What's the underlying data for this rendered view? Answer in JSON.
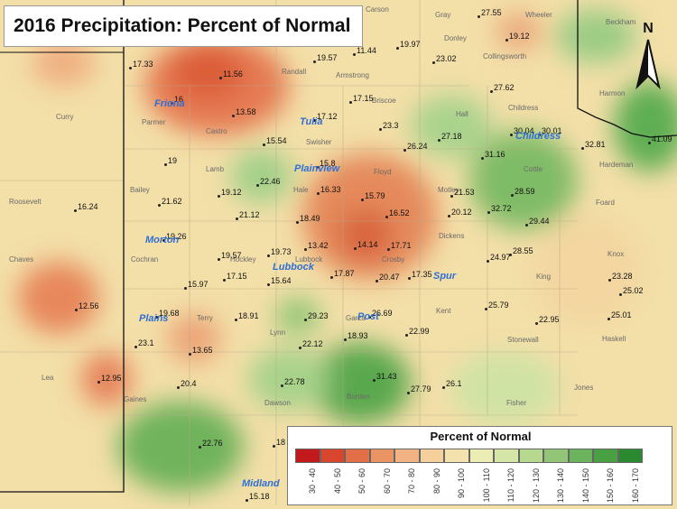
{
  "title": "2016 Precipitation: Percent of Normal",
  "legend": {
    "title": "Percent of Normal",
    "ranges": [
      "30 - 40",
      "40 - 50",
      "50 - 60",
      "60 - 70",
      "70 - 80",
      "80 - 90",
      "90 - 100",
      "100 - 110",
      "110 - 120",
      "120 - 130",
      "130 - 140",
      "140 - 150",
      "150 - 160",
      "160 - 170"
    ],
    "colors": [
      "#c2191c",
      "#d9462e",
      "#e36f48",
      "#ea9363",
      "#f1b383",
      "#f5cf9c",
      "#f3e2ae",
      "#ecedb5",
      "#d5e6a6",
      "#b7d98f",
      "#93c576",
      "#6bb35c",
      "#48a042",
      "#2b8a2f"
    ]
  },
  "north_arrow": {
    "label": "N",
    "icon": "north-arrow-icon"
  },
  "stations": [
    {
      "value": "27.55"
    },
    {
      "value": "19.12"
    },
    {
      "value": "17.33"
    },
    {
      "value": "11.56"
    },
    {
      "value": "19.57"
    },
    {
      "value": "11.44"
    },
    {
      "value": "19.97"
    },
    {
      "value": "23.02"
    },
    {
      "value": "27.62"
    },
    {
      "value": "16"
    },
    {
      "value": "13.58"
    },
    {
      "value": "17.15"
    },
    {
      "value": "17.12"
    },
    {
      "value": "23.3"
    },
    {
      "value": "30.04"
    },
    {
      "value": "30.01"
    },
    {
      "value": "41.09"
    },
    {
      "value": "15.54"
    },
    {
      "value": "26.24"
    },
    {
      "value": "27.18"
    },
    {
      "value": "31.16"
    },
    {
      "value": "32.81"
    },
    {
      "value": "15.8"
    },
    {
      "value": "19"
    },
    {
      "value": "22.46"
    },
    {
      "value": "16.33"
    },
    {
      "value": "16.24"
    },
    {
      "value": "21.62"
    },
    {
      "value": "19.12"
    },
    {
      "value": "15.79"
    },
    {
      "value": "21.53"
    },
    {
      "value": "28.59"
    },
    {
      "value": "21.12"
    },
    {
      "value": "18.49"
    },
    {
      "value": "16.52"
    },
    {
      "value": "20.12"
    },
    {
      "value": "32.72"
    },
    {
      "value": "29.44"
    },
    {
      "value": "19.26"
    },
    {
      "value": "14.14"
    },
    {
      "value": "17.71"
    },
    {
      "value": "19.57"
    },
    {
      "value": "19.73"
    },
    {
      "value": "13.42"
    },
    {
      "value": "28.55"
    },
    {
      "value": "24.97"
    },
    {
      "value": "17.15"
    },
    {
      "value": "15.64"
    },
    {
      "value": "17.87"
    },
    {
      "value": "20.47"
    },
    {
      "value": "17.35"
    },
    {
      "value": "12.56"
    },
    {
      "value": "23.28"
    },
    {
      "value": "15.97"
    },
    {
      "value": "25.02"
    },
    {
      "value": "19.68"
    },
    {
      "value": "18.91"
    },
    {
      "value": "29.23"
    },
    {
      "value": "26.69"
    },
    {
      "value": "25.79"
    },
    {
      "value": "22.95"
    },
    {
      "value": "25.01"
    },
    {
      "value": "18.93"
    },
    {
      "value": "22.99"
    },
    {
      "value": "23.1"
    },
    {
      "value": "13.65"
    },
    {
      "value": "22.12"
    },
    {
      "value": "12.95"
    },
    {
      "value": "20.4"
    },
    {
      "value": "22.78"
    },
    {
      "value": "31.43"
    },
    {
      "value": "27.79"
    },
    {
      "value": "26.1"
    },
    {
      "value": "22.76"
    },
    {
      "value": "18"
    },
    {
      "value": "15.18"
    }
  ],
  "counties": [
    "Carson",
    "Gray",
    "Wheeler",
    "Beckham",
    "Donley",
    "Collingsworth",
    "Randall",
    "Armstrong",
    "Harmon",
    "Curry",
    "Parmer",
    "Castro",
    "Swisher",
    "Briscoe",
    "Hall",
    "Childress",
    "Hardeman",
    "Lamb",
    "Hale",
    "Floyd",
    "Motley",
    "Cottle",
    "Foard",
    "Roosevelt",
    "Bailey",
    "Dickens",
    "King",
    "Knox",
    "Chaves",
    "Cochran",
    "Hockley",
    "Lubbock",
    "Crosby",
    "Terry",
    "Lynn",
    "Garza",
    "Kent",
    "Stonewall",
    "Haskell",
    "Lea",
    "Gaines",
    "Dawson",
    "Borden",
    "Jones",
    "Fisher"
  ],
  "cities": [
    "Friona",
    "Tulia",
    "Childress",
    "Plainview",
    "Morton",
    "Lubbock",
    "Spur",
    "Plains",
    "Post",
    "Midland"
  ]
}
